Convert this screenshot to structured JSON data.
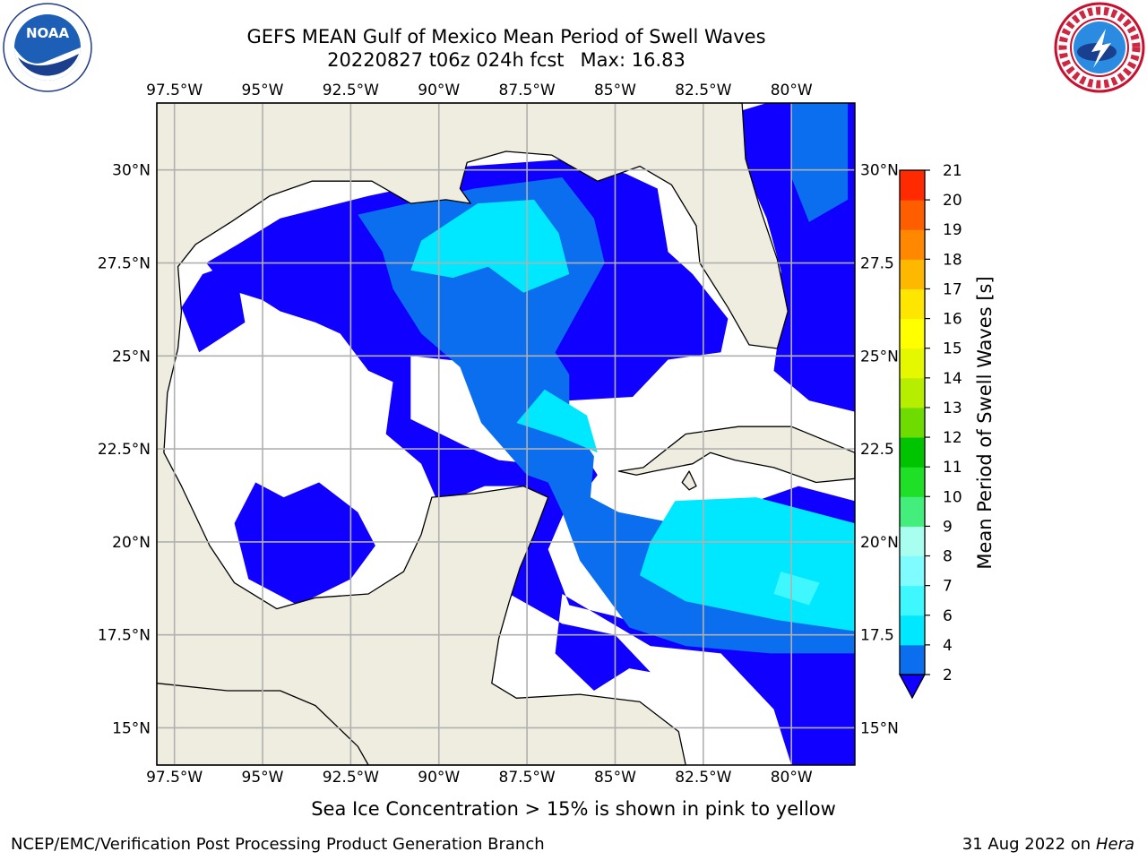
{
  "header": {
    "title_line1": "GEFS MEAN Gulf of Mexico Mean Period of Swell Waves",
    "title_line2_date": "20220827 t06z 024h fcst",
    "title_line2_max": "Max: 16.83"
  },
  "logos": {
    "left": "noaa-logo",
    "right": "national-weather-service-logo"
  },
  "chart_data": {
    "type": "heatmap",
    "title": "GEFS MEAN Gulf of Mexico Mean Period of Swell Waves",
    "lon_range": [
      -98.0,
      -78.2
    ],
    "lat_range": [
      14.0,
      31.8
    ],
    "x_ticks": [
      "97.5°W",
      "95°W",
      "92.5°W",
      "90°W",
      "87.5°W",
      "85°W",
      "82.5°W",
      "80°W"
    ],
    "x_tick_values": [
      -97.5,
      -95.0,
      -92.5,
      -90.0,
      -87.5,
      -85.0,
      -82.5,
      -80.0
    ],
    "y_ticks_left": [
      "30°N",
      "27.5°N",
      "25°N",
      "22.5°N",
      "20°N",
      "17.5°N",
      "15°N"
    ],
    "y_ticks_right": [
      "30°N",
      "27.5",
      "25°N",
      "22.5",
      "20°N",
      "17.5",
      "15°N"
    ],
    "y_tick_values": [
      30.0,
      27.5,
      25.0,
      22.5,
      20.0,
      17.5,
      15.0
    ],
    "grid": true,
    "max_value": 16.83,
    "colorbar": {
      "label": "Mean Period of Swell Waves [s]",
      "ticks": [
        "2",
        "4",
        "6",
        "7",
        "8",
        "9",
        "10",
        "11",
        "12",
        "13",
        "14",
        "15",
        "16",
        "17",
        "18",
        "19",
        "20",
        "21"
      ],
      "levels": [
        2,
        4,
        6,
        7,
        8,
        9,
        10,
        11,
        12,
        13,
        14,
        15,
        16,
        17,
        18,
        19,
        20,
        21
      ],
      "colors": [
        "#0a6eef",
        "#00e8ff",
        "#3ff8ff",
        "#7ffcff",
        "#a8fff0",
        "#44ee7d",
        "#1fe026",
        "#00c400",
        "#6edc00",
        "#b7ee00",
        "#e5f800",
        "#ffff00",
        "#ffe600",
        "#ffb800",
        "#ff8800",
        "#ff5e00",
        "#ff2a00",
        "#ff0000"
      ],
      "extend_below_color": "#1000ff",
      "extend": "min"
    }
  },
  "colors": {
    "land": "#efede0",
    "ocean_masked": "#ffffff",
    "period_lt2": "#1000ff",
    "period_2_4": "#0a6eef",
    "period_4_6": "#00e8ff",
    "period_6_7": "#3ff8ff",
    "period_7_8": "#7ffcff",
    "grid": "#b0b0b0",
    "coast": "#000000"
  },
  "footer": {
    "note": "Sea Ice Concentration > 15% is shown in pink to yellow",
    "credit": "NCEP/EMC/Verification Post Processing Product Generation Branch",
    "date": "31 Aug 2022 on",
    "machine": "Hera"
  }
}
